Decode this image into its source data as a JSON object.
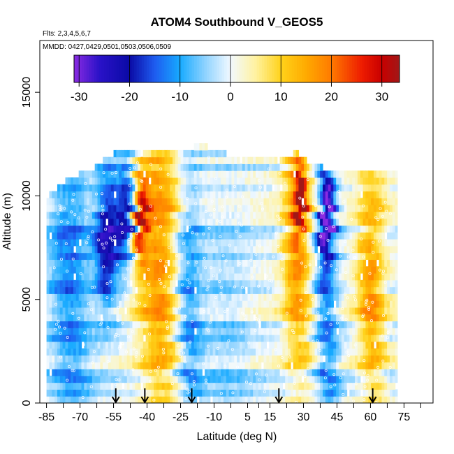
{
  "chart_data": {
    "type": "heatmap",
    "title": "ATOM4 Southbound V_GEOS5",
    "subtitle_flights": "Flts: 2,3,4,5,6,7",
    "subtitle_dates": "MMDD: 0427,0429,0501,0503,0506,0509",
    "xlabel": "Latitude (deg N)",
    "ylabel": "Altitude (m)",
    "xlim": [
      -88,
      88
    ],
    "ylim": [
      0,
      17500
    ],
    "x_ticks": [
      -85,
      -70,
      -55,
      -40,
      -25,
      -10,
      5,
      15,
      30,
      45,
      60,
      75
    ],
    "x_tick_labels": [
      "-85",
      "-70",
      "-55",
      "-40",
      "-25",
      "-10",
      "5",
      "15",
      "30",
      "45",
      "60",
      "75"
    ],
    "x_minor_ticks": [
      -77.5,
      -62.5,
      -47.5,
      -32.5,
      -17.5,
      -2.5,
      10,
      22.5,
      37.5,
      52.5,
      67.5,
      82.5
    ],
    "y_ticks": [
      0,
      5000,
      10000,
      15000
    ],
    "y_tick_labels": [
      "0",
      "5000",
      "10000",
      "15000"
    ],
    "colorbar": {
      "range": [
        -31,
        33.5
      ],
      "ticks": [
        -30,
        -20,
        -10,
        0,
        10,
        20,
        30
      ],
      "tick_labels": [
        "-30",
        "-20",
        "-10",
        "0",
        "10",
        "20",
        "30"
      ],
      "stops": [
        {
          "v": -31,
          "c": "#8a2be2"
        },
        {
          "v": -26,
          "c": "#2a12c8"
        },
        {
          "v": -20,
          "c": "#0a0aa5"
        },
        {
          "v": -15,
          "c": "#1e5cf0"
        },
        {
          "v": -10,
          "c": "#17aaff"
        },
        {
          "v": -5,
          "c": "#8fd3ff"
        },
        {
          "v": 0,
          "c": "#f2f9ff"
        },
        {
          "v": 5,
          "c": "#fff2a0"
        },
        {
          "v": 10,
          "c": "#ffd21a"
        },
        {
          "v": 15,
          "c": "#ffaa00"
        },
        {
          "v": 20,
          "c": "#ff7a00"
        },
        {
          "v": 26,
          "c": "#ee1c00"
        },
        {
          "v": 30,
          "c": "#c80000"
        },
        {
          "v": 33.5,
          "c": "#a01818"
        }
      ]
    },
    "flight_profile_latitudes": [
      -54,
      -41,
      -20,
      19,
      61
    ],
    "field_extent": {
      "lat_min": -85,
      "lat_max": 72,
      "top_altitude_by_lat": [
        [
          -85,
          9800
        ],
        [
          -79,
          10400
        ],
        [
          -74,
          10800
        ],
        [
          -66,
          11000
        ],
        [
          -61,
          11500
        ],
        [
          -55,
          11900
        ],
        [
          -45,
          11900
        ],
        [
          -25,
          12100
        ],
        [
          -15,
          12300
        ],
        [
          0,
          11700
        ],
        [
          15,
          11800
        ],
        [
          28,
          11900
        ],
        [
          33,
          11300
        ],
        [
          47,
          11100
        ],
        [
          58,
          10900
        ],
        [
          72,
          10900
        ]
      ]
    },
    "wind_features": [
      {
        "lat": -75,
        "alt": 6000,
        "w_lat": 10,
        "w_alt": 9000,
        "v": -13
      },
      {
        "lat": -58,
        "alt": 7800,
        "w_lat": 5,
        "w_alt": 3500,
        "v": -24
      },
      {
        "lat": -50,
        "alt": 9000,
        "w_lat": 4,
        "w_alt": 2500,
        "v": -22
      },
      {
        "lat": -43,
        "alt": 8800,
        "w_lat": 3,
        "w_alt": 2000,
        "v": 26
      },
      {
        "lat": -35,
        "alt": 7000,
        "w_lat": 9,
        "w_alt": 9000,
        "v": 17
      },
      {
        "lat": -22,
        "alt": 4500,
        "w_lat": 6,
        "w_alt": 7000,
        "v": -12
      },
      {
        "lat": -5,
        "alt": 3000,
        "w_lat": 12,
        "w_alt": 8000,
        "v": -5
      },
      {
        "lat": 27,
        "alt": 8000,
        "w_lat": 6,
        "w_alt": 7000,
        "v": 18
      },
      {
        "lat": 28,
        "alt": 9700,
        "w_lat": 2,
        "w_alt": 1500,
        "v": 28
      },
      {
        "lat": 40,
        "alt": 6000,
        "w_lat": 5,
        "w_alt": 9000,
        "v": -14
      },
      {
        "lat": 40,
        "alt": 9000,
        "w_lat": 2.5,
        "w_alt": 2000,
        "v": -26
      },
      {
        "lat": 60,
        "alt": 5500,
        "w_lat": 6,
        "w_alt": 6000,
        "v": 16
      }
    ]
  }
}
